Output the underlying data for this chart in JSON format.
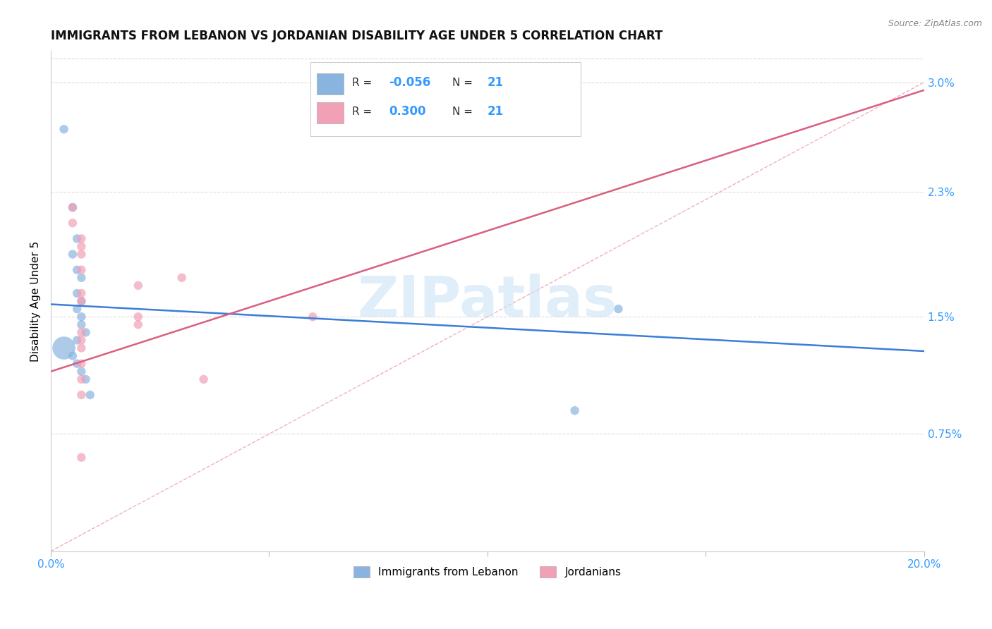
{
  "title": "IMMIGRANTS FROM LEBANON VS JORDANIAN DISABILITY AGE UNDER 5 CORRELATION CHART",
  "source": "Source: ZipAtlas.com",
  "ylabel": "Disability Age Under 5",
  "legend_label1": "Immigrants from Lebanon",
  "legend_label2": "Jordanians",
  "R1": "-0.056",
  "N1": "21",
  "R2": "0.300",
  "N2": "21",
  "xmin": 0.0,
  "xmax": 0.2,
  "ymin": 0.0,
  "ymax": 0.032,
  "yticks": [
    0.0075,
    0.015,
    0.023,
    0.03
  ],
  "ytick_labels": [
    "0.75%",
    "1.5%",
    "2.3%",
    "3.0%"
  ],
  "watermark": "ZIPatlas",
  "blue_color": "#8ab4e0",
  "pink_color": "#f2a0b5",
  "blue_line_color": "#3b7dd8",
  "pink_line_color": "#d95f7f",
  "dash_line_color": "#f0b0c0",
  "blue_scatter": [
    [
      0.003,
      0.027
    ],
    [
      0.005,
      0.022
    ],
    [
      0.006,
      0.02
    ],
    [
      0.005,
      0.019
    ],
    [
      0.006,
      0.018
    ],
    [
      0.007,
      0.0175
    ],
    [
      0.006,
      0.0165
    ],
    [
      0.007,
      0.016
    ],
    [
      0.006,
      0.0155
    ],
    [
      0.007,
      0.015
    ],
    [
      0.007,
      0.0145
    ],
    [
      0.008,
      0.014
    ],
    [
      0.006,
      0.0135
    ],
    [
      0.003,
      0.013
    ],
    [
      0.005,
      0.0125
    ],
    [
      0.006,
      0.012
    ],
    [
      0.007,
      0.0115
    ],
    [
      0.008,
      0.011
    ],
    [
      0.009,
      0.01
    ],
    [
      0.13,
      0.0155
    ],
    [
      0.12,
      0.009
    ]
  ],
  "blue_sizes": [
    80,
    80,
    80,
    80,
    80,
    80,
    80,
    80,
    80,
    80,
    80,
    80,
    80,
    80,
    80,
    80,
    80,
    80,
    80,
    80,
    80
  ],
  "blue_big_idx": 13,
  "blue_big_size": 550,
  "pink_scatter": [
    [
      0.005,
      0.022
    ],
    [
      0.005,
      0.021
    ],
    [
      0.007,
      0.02
    ],
    [
      0.007,
      0.0195
    ],
    [
      0.007,
      0.019
    ],
    [
      0.007,
      0.018
    ],
    [
      0.02,
      0.017
    ],
    [
      0.03,
      0.0175
    ],
    [
      0.007,
      0.0165
    ],
    [
      0.007,
      0.016
    ],
    [
      0.02,
      0.015
    ],
    [
      0.02,
      0.0145
    ],
    [
      0.007,
      0.014
    ],
    [
      0.007,
      0.0135
    ],
    [
      0.007,
      0.013
    ],
    [
      0.007,
      0.012
    ],
    [
      0.007,
      0.011
    ],
    [
      0.035,
      0.011
    ],
    [
      0.007,
      0.01
    ],
    [
      0.06,
      0.015
    ],
    [
      0.007,
      0.006
    ]
  ],
  "pink_sizes": [
    80,
    80,
    80,
    80,
    80,
    80,
    80,
    80,
    80,
    80,
    80,
    80,
    80,
    80,
    80,
    80,
    80,
    80,
    80,
    80,
    80
  ],
  "blue_line_x": [
    0.0,
    0.2
  ],
  "blue_line_y": [
    0.0158,
    0.0128
  ],
  "pink_line_x": [
    0.0,
    0.2
  ],
  "pink_line_y": [
    0.0115,
    0.0295
  ],
  "dash_line_x": [
    0.0,
    0.2
  ],
  "dash_line_y": [
    0.0,
    0.03
  ]
}
